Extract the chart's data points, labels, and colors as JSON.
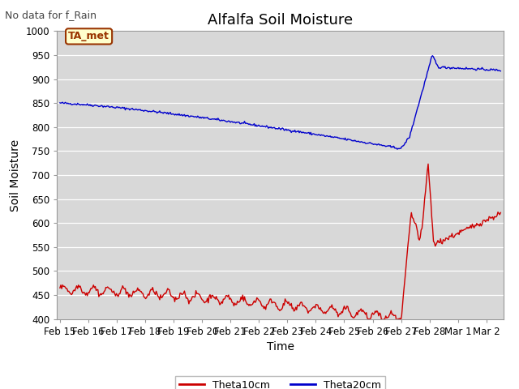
{
  "title": "Alfalfa Soil Moisture",
  "subtitle": "No data for f_Rain",
  "xlabel": "Time",
  "ylabel": "Soil Moisture",
  "legend_label1": "Theta10cm",
  "legend_label2": "Theta20cm",
  "color1": "#cc0000",
  "color2": "#0000cc",
  "annotation_text": "TA_met",
  "annotation_color": "#993300",
  "annotation_bg": "#ffffcc",
  "ylim": [
    400,
    1000
  ],
  "yticks": [
    400,
    450,
    500,
    550,
    600,
    650,
    700,
    750,
    800,
    850,
    900,
    950,
    1000
  ],
  "axes_bg": "#d8d8d8",
  "fig_bg": "#ffffff",
  "title_fontsize": 13,
  "axis_fontsize": 10,
  "tick_fontsize": 8.5,
  "xtick_labels": [
    "Feb 15",
    "Feb 16",
    "Feb 17",
    "Feb 18",
    "Feb 19",
    "Feb 20",
    "Feb 21",
    "Feb 22",
    "Feb 23",
    "Feb 24",
    "Feb 25",
    "Feb 26",
    "Feb 27",
    "Feb 28",
    "Mar 1",
    "Mar 2"
  ]
}
